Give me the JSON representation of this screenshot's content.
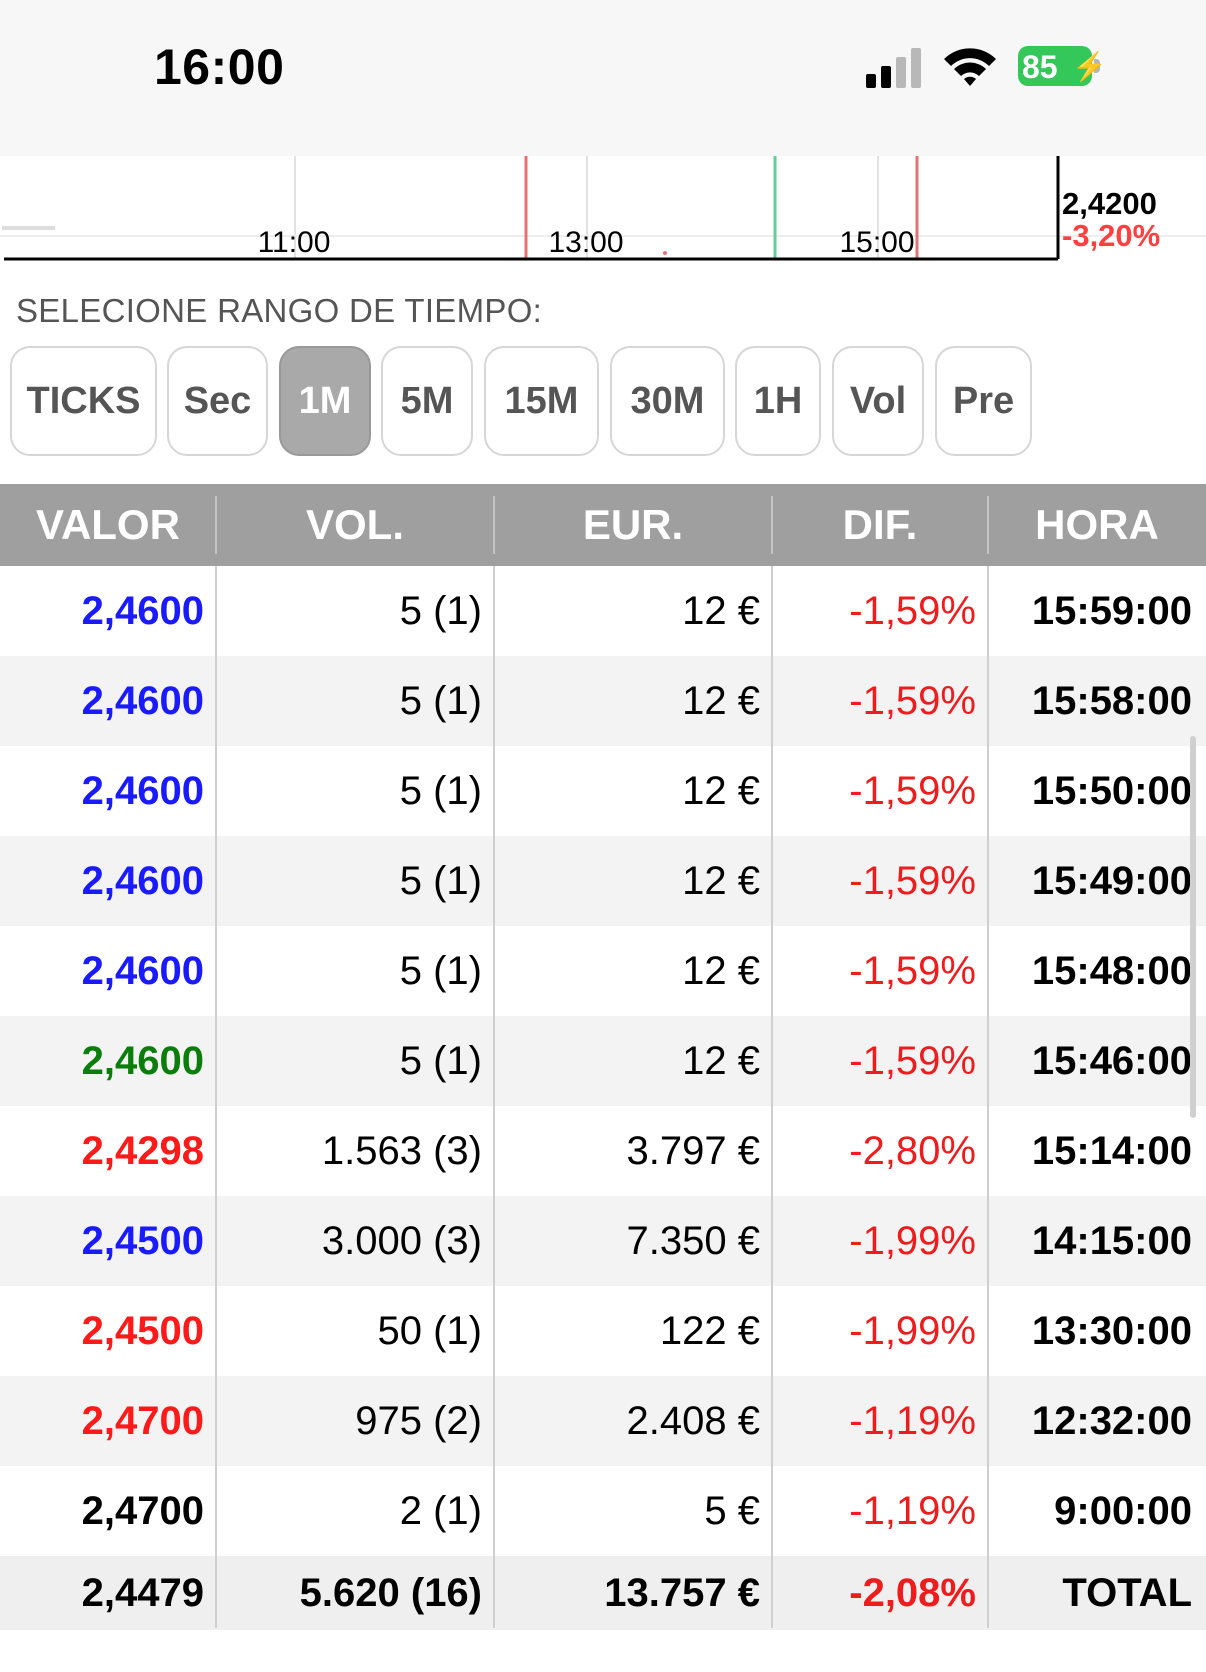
{
  "status_bar": {
    "time": "16:00",
    "battery": "85"
  },
  "chart": {
    "price": "2,4200",
    "change": "-3,20%",
    "time_ticks": [
      "11:00",
      "13:00",
      "15:00"
    ]
  },
  "range": {
    "title": "SELECIONE RANGO DE TIEMPO:",
    "buttons": [
      "TICKS",
      "Sec",
      "1M",
      "5M",
      "15M",
      "30M",
      "1H",
      "Vol",
      "Pre"
    ],
    "selected": "1M"
  },
  "table": {
    "headers": {
      "valor": "VALOR",
      "vol": "VOL.",
      "eur": "EUR.",
      "dif": "DIF.",
      "hora": "HORA"
    },
    "rows": [
      {
        "valor": "2,4600",
        "color": "#1a1aff",
        "vol": "5 (1)",
        "eur": "12 €",
        "dif": "-1,59%",
        "hora": "15:59:00"
      },
      {
        "valor": "2,4600",
        "color": "#1a1aff",
        "vol": "5 (1)",
        "eur": "12 €",
        "dif": "-1,59%",
        "hora": "15:58:00"
      },
      {
        "valor": "2,4600",
        "color": "#1a1aff",
        "vol": "5 (1)",
        "eur": "12 €",
        "dif": "-1,59%",
        "hora": "15:50:00"
      },
      {
        "valor": "2,4600",
        "color": "#1a1aff",
        "vol": "5 (1)",
        "eur": "12 €",
        "dif": "-1,59%",
        "hora": "15:49:00"
      },
      {
        "valor": "2,4600",
        "color": "#1a1aff",
        "vol": "5 (1)",
        "eur": "12 €",
        "dif": "-1,59%",
        "hora": "15:48:00"
      },
      {
        "valor": "2,4600",
        "color": "#0b7d0b",
        "vol": "5 (1)",
        "eur": "12 €",
        "dif": "-1,59%",
        "hora": "15:46:00"
      },
      {
        "valor": "2,4298",
        "color": "#ff1a1a",
        "vol": "1.563 (3)",
        "eur": "3.797 €",
        "dif": "-2,80%",
        "hora": "15:14:00"
      },
      {
        "valor": "2,4500",
        "color": "#1a1aff",
        "vol": "3.000 (3)",
        "eur": "7.350 €",
        "dif": "-1,99%",
        "hora": "14:15:00"
      },
      {
        "valor": "2,4500",
        "color": "#ff1a1a",
        "vol": "50 (1)",
        "eur": "122 €",
        "dif": "-1,99%",
        "hora": "13:30:00"
      },
      {
        "valor": "2,4700",
        "color": "#ff1a1a",
        "vol": "975 (2)",
        "eur": "2.408 €",
        "dif": "-1,19%",
        "hora": "12:32:00"
      },
      {
        "valor": "2,4700",
        "color": "#000000",
        "vol": "2 (1)",
        "eur": "5 €",
        "dif": "-1,19%",
        "hora": "9:00:00"
      }
    ],
    "total": {
      "valor": "2,4479",
      "vol": "5.620 (16)",
      "eur": "13.757 €",
      "dif": "-2,08%",
      "hora": "TOTAL"
    }
  }
}
